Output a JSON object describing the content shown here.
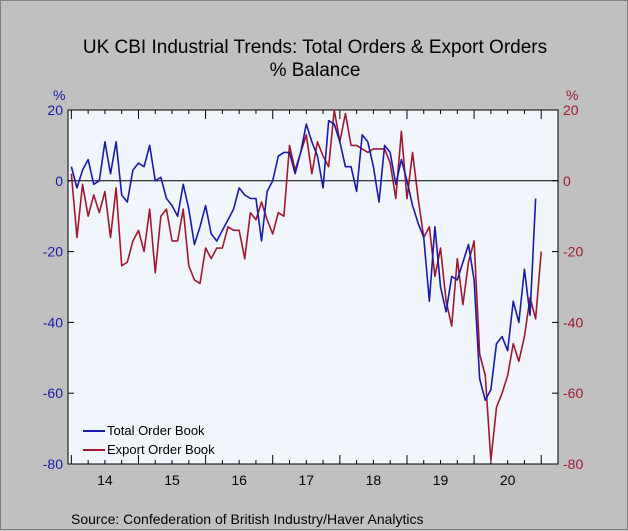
{
  "chart_data": {
    "type": "line",
    "title": "UK CBI Industrial Trends: Total Orders & Export Orders",
    "subtitle": "% Balance",
    "left_unit": "%",
    "right_unit": "%",
    "source": "Source:   Confederation of British Industry/Haver Analytics",
    "ylim": [
      -80,
      20
    ],
    "yticks": [
      20,
      0,
      -20,
      -40,
      -60,
      -80
    ],
    "xlim": [
      2013.95,
      2021.25
    ],
    "x_tick_labels": [
      "14",
      "15",
      "16",
      "17",
      "18",
      "19",
      "20"
    ],
    "x_tick_positions": [
      2014.5,
      2015.5,
      2016.5,
      2017.5,
      2018.5,
      2019.5,
      2020.5
    ],
    "zero_line": true,
    "legend_position": "bottom-left",
    "colors": {
      "total": "#1a1aa8",
      "export": "#a01830",
      "plot_bg": "#f0f6fc"
    },
    "series": [
      {
        "name": "Total Order Book",
        "color": "#1a1aa8",
        "start": 2014.0,
        "values": [
          4,
          -2,
          3,
          6,
          -1,
          0,
          11,
          2,
          11,
          -4,
          -6,
          3,
          5,
          4,
          10,
          0,
          1,
          -5,
          -7,
          -10,
          -1,
          -8,
          -18,
          -13,
          -7,
          -15,
          -17,
          -14,
          -11,
          -8,
          -2,
          -4,
          -5,
          -5,
          -17,
          -3,
          0,
          7,
          8,
          8,
          2,
          8,
          16,
          11,
          7,
          -2,
          17,
          16,
          11,
          4,
          4,
          -3,
          13,
          11,
          4,
          -6,
          10,
          8,
          -1,
          6,
          0,
          -7,
          -12,
          -16,
          -34,
          -13,
          -30,
          -37,
          -27,
          -28,
          -23,
          -18,
          -28,
          -56,
          -62,
          -59,
          -46,
          -44,
          -48,
          -34,
          -40,
          -25,
          -38,
          -5
        ]
      },
      {
        "name": "Export Order Book",
        "color": "#a01830",
        "start": 2014.0,
        "values": [
          2,
          -16,
          -1,
          -10,
          -4,
          -9,
          -3,
          -16,
          -2,
          -24,
          -23,
          -17,
          -14,
          -20,
          -8,
          -26,
          -10,
          -8,
          -17,
          -17,
          -8,
          -24,
          -28,
          -29,
          -19,
          -22,
          -19,
          -19,
          -13,
          -14,
          -14,
          -22,
          -9,
          -11,
          -6,
          -11,
          -15,
          -9,
          -10,
          10,
          3,
          8,
          13,
          2,
          11,
          7,
          4,
          20,
          11,
          19,
          10,
          10,
          9,
          8,
          9,
          9,
          9,
          5,
          -5,
          14,
          -5,
          8,
          -5,
          -16,
          -13,
          -27,
          -19,
          -34,
          -41,
          -22,
          -35,
          -23,
          -17,
          -49,
          -55,
          -79,
          -64,
          -60,
          -55,
          -46,
          -51,
          -44,
          -33,
          -39,
          -20
        ]
      }
    ]
  }
}
